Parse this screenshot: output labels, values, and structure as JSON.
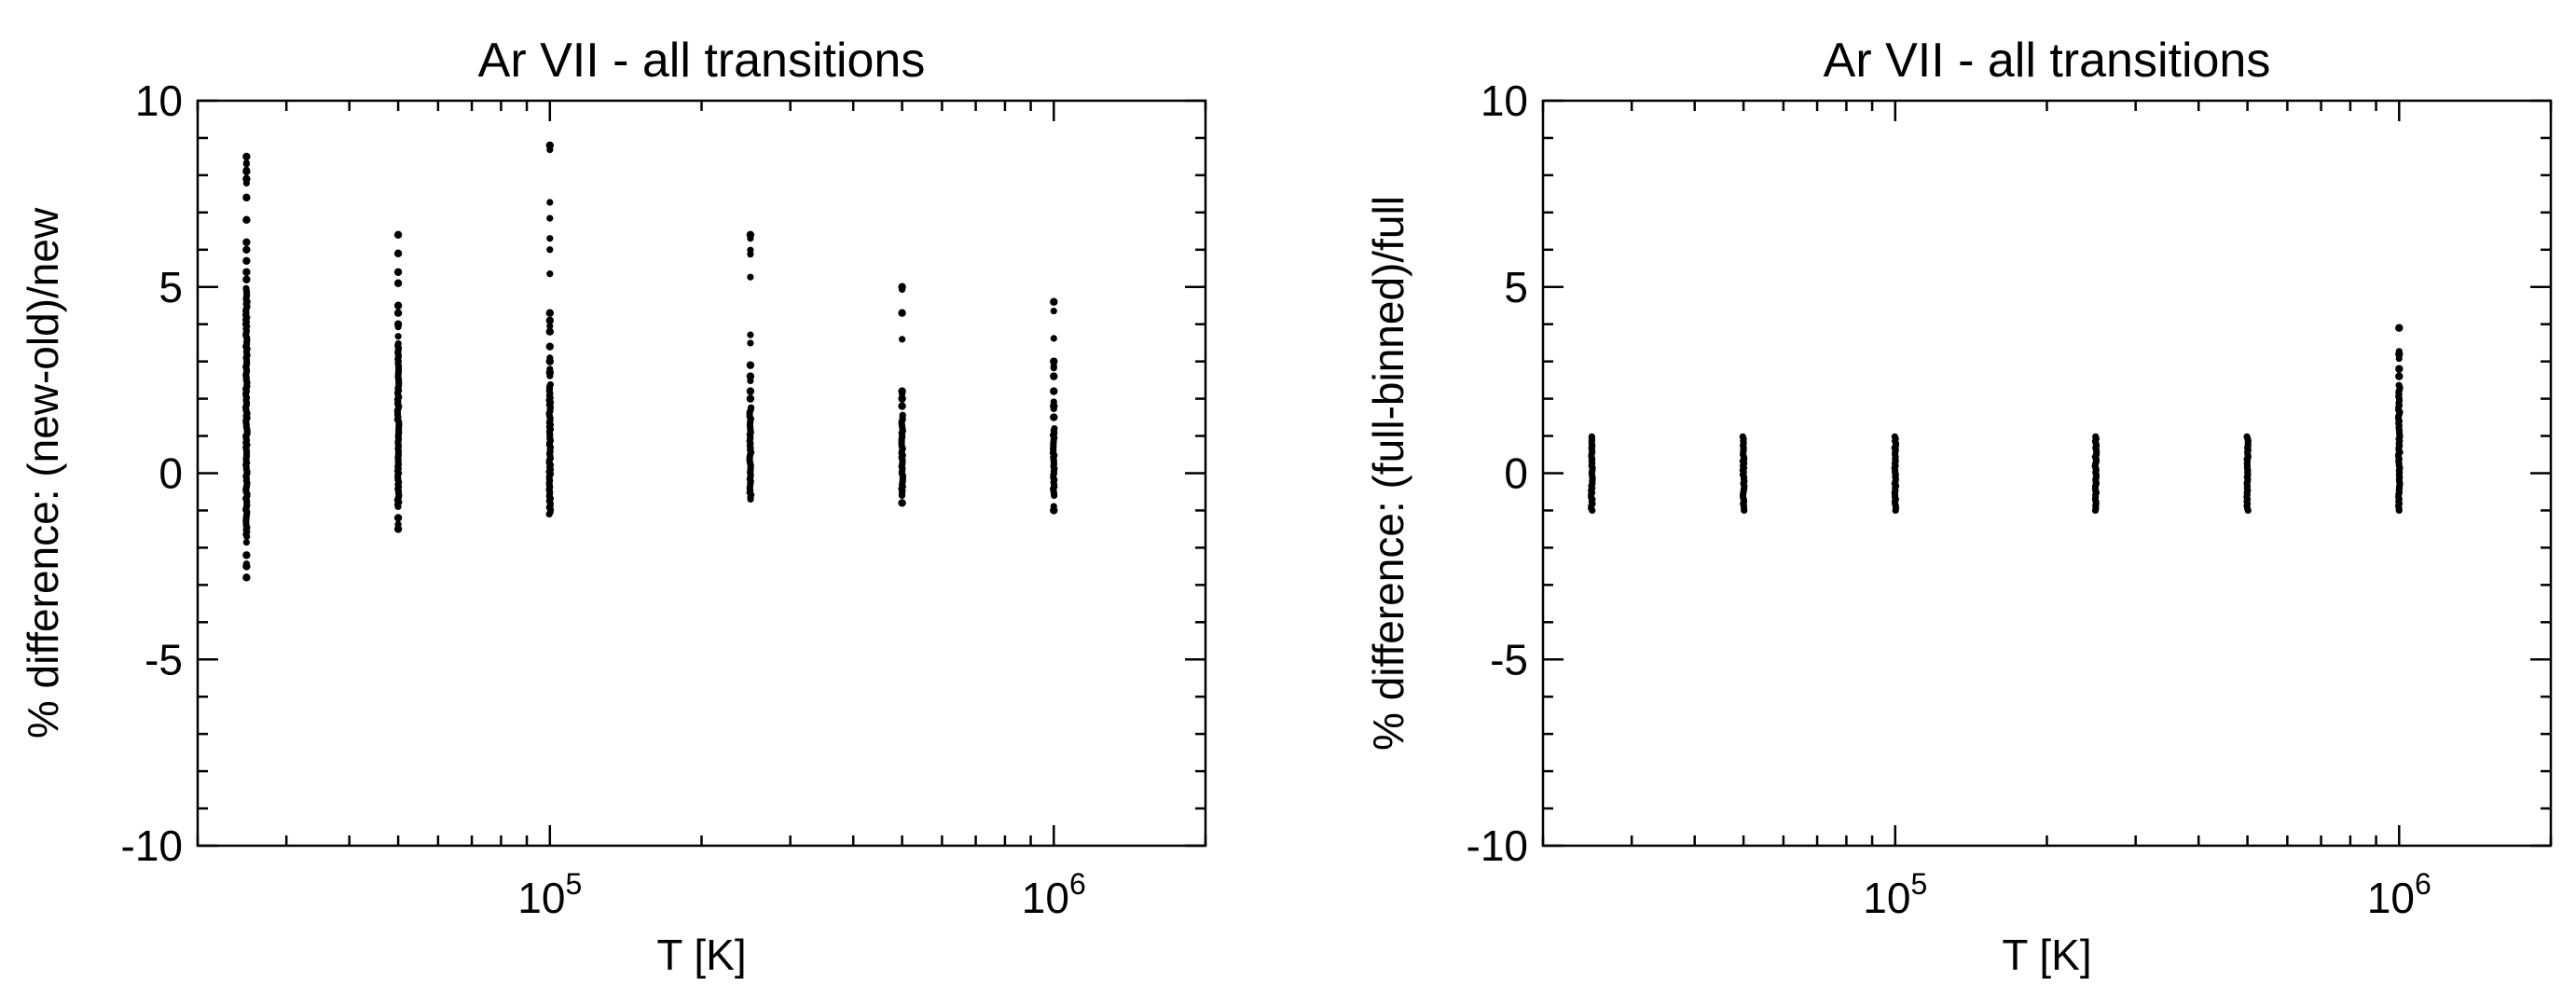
{
  "chart_data": [
    {
      "type": "scatter",
      "title": "Ar VII - all transitions",
      "xlabel": "T [K]",
      "ylabel": "% difference: (new-old)/new",
      "x_scale": "log",
      "xlim": [
        20000,
        2000000
      ],
      "ylim": [
        -10,
        10
      ],
      "x_ticks": [
        {
          "value": 100000,
          "base": "10",
          "exp": "5"
        },
        {
          "value": 1000000,
          "base": "10",
          "exp": "6"
        }
      ],
      "y_ticks": [
        {
          "value": -10,
          "label": "-10"
        },
        {
          "value": -5,
          "label": "-5"
        },
        {
          "value": 0,
          "label": "0"
        },
        {
          "value": 5,
          "label": "5"
        },
        {
          "value": 10,
          "label": "10"
        }
      ],
      "grid": false,
      "series": [
        {
          "x": 25000,
          "min": -2.8,
          "max": 8.5,
          "dense_min": -1.7,
          "dense_max": 5.0,
          "outliers": [
            8.5,
            8.1,
            7.9,
            7.4,
            6.8,
            6.2,
            6.0,
            5.7,
            5.4,
            5.2,
            -2.2,
            -2.5,
            -2.8
          ]
        },
        {
          "x": 50000,
          "min": -1.5,
          "max": 6.4,
          "dense_min": -0.9,
          "dense_max": 3.5,
          "outliers": [
            6.4,
            5.9,
            5.4,
            5.1,
            4.5,
            4.3,
            4.0,
            -1.2,
            -1.5
          ]
        },
        {
          "x": 100000,
          "min": -1.1,
          "max": 8.8,
          "dense_min": -1.1,
          "dense_max": 2.4,
          "outliers": [
            8.8,
            4.3,
            4.1,
            3.8,
            3.4,
            3.0,
            2.7
          ]
        },
        {
          "x": 250000,
          "min": -0.7,
          "max": 6.4,
          "dense_min": -0.7,
          "dense_max": 1.8,
          "outliers": [
            6.4,
            2.9,
            2.6,
            2.2,
            2.0
          ]
        },
        {
          "x": 500000,
          "min": -0.8,
          "max": 5.0,
          "dense_min": -0.6,
          "dense_max": 1.6,
          "outliers": [
            5.0,
            4.3,
            2.2,
            2.0,
            1.8,
            -0.8
          ]
        },
        {
          "x": 1000000,
          "min": -1.0,
          "max": 4.6,
          "dense_min": -0.6,
          "dense_max": 1.2,
          "outliers": [
            4.6,
            3.0,
            2.6,
            2.2,
            1.8,
            1.5,
            -1.0
          ]
        }
      ]
    },
    {
      "type": "scatter",
      "title": "Ar VII - all transitions",
      "xlabel": "T [K]",
      "ylabel": "% difference: (full-binned)/full",
      "x_scale": "log",
      "xlim": [
        20000,
        2000000
      ],
      "ylim": [
        -10,
        10
      ],
      "x_ticks": [
        {
          "value": 100000,
          "base": "10",
          "exp": "5"
        },
        {
          "value": 1000000,
          "base": "10",
          "exp": "6"
        }
      ],
      "y_ticks": [
        {
          "value": -10,
          "label": "-10"
        },
        {
          "value": -5,
          "label": "-5"
        },
        {
          "value": 0,
          "label": "0"
        },
        {
          "value": 5,
          "label": "5"
        },
        {
          "value": 10,
          "label": "10"
        }
      ],
      "grid": false,
      "series": [
        {
          "x": 25000,
          "min": -1.0,
          "max": 1.0,
          "dense_min": -1.0,
          "dense_max": 1.0,
          "outliers": []
        },
        {
          "x": 50000,
          "min": -1.0,
          "max": 1.0,
          "dense_min": -1.0,
          "dense_max": 1.0,
          "outliers": []
        },
        {
          "x": 100000,
          "min": -1.0,
          "max": 1.0,
          "dense_min": -1.0,
          "dense_max": 1.0,
          "outliers": []
        },
        {
          "x": 250000,
          "min": -1.0,
          "max": 1.0,
          "dense_min": -1.0,
          "dense_max": 1.0,
          "outliers": []
        },
        {
          "x": 500000,
          "min": -1.0,
          "max": 1.0,
          "dense_min": -1.0,
          "dense_max": 1.0,
          "outliers": []
        },
        {
          "x": 1000000,
          "min": -1.0,
          "max": 3.9,
          "dense_min": -1.0,
          "dense_max": 2.4,
          "outliers": [
            3.9,
            3.2,
            2.8,
            2.6
          ]
        }
      ]
    }
  ]
}
